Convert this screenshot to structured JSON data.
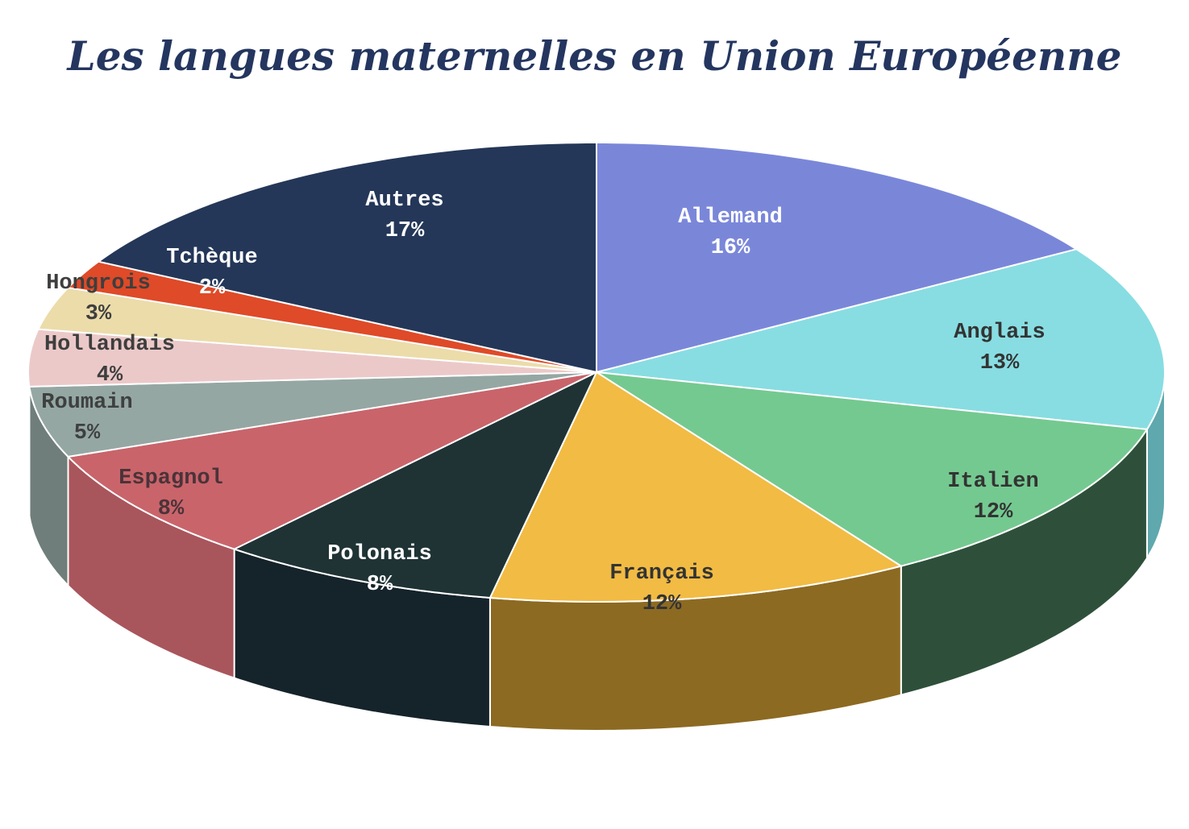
{
  "title": "Les langues maternelles en Union Européenne",
  "chart_data": {
    "type": "pie",
    "title": "Les langues maternelles en Union Européenne",
    "style": "3d",
    "categories": [
      "Allemand",
      "Anglais",
      "Italien",
      "Français",
      "Polonais",
      "Espagnol",
      "Roumain",
      "Hollandais",
      "Hongrois",
      "Tchèque",
      "Autres"
    ],
    "values": [
      16,
      13,
      12,
      12,
      8,
      8,
      5,
      4,
      3,
      2,
      17
    ],
    "unit": "%",
    "colors": [
      "#7a87d9",
      "#88dde2",
      "#74c990",
      "#f2bb43",
      "#1f3335",
      "#c9646b",
      "#95a7a3",
      "#ecc9c9",
      "#ebdcaa",
      "#df4a28",
      "#243758"
    ],
    "side_colors": [
      "#5a65a8",
      "#5fa8ad",
      "#2e503a",
      "#8c6a22",
      "#15232a",
      "#a9555c",
      "#6f7e7a",
      "#c6a5a5",
      "#c2b386",
      "#a8361d",
      "#18253d"
    ],
    "label_colors": [
      "#ffffff",
      "#333333",
      "#333333",
      "#333333",
      "#ffffff",
      "#4a3338",
      "#3e4040",
      "#3e3e3e",
      "#3e3e3e",
      "#ffffff",
      "#ffffff"
    ],
    "labels": [
      {
        "name": "Allemand",
        "pct": "16%"
      },
      {
        "name": "Anglais",
        "pct": "13%"
      },
      {
        "name": "Italien",
        "pct": "12%"
      },
      {
        "name": "Français",
        "pct": "12%"
      },
      {
        "name": "Polonais",
        "pct": "8%"
      },
      {
        "name": "Espagnol",
        "pct": "8%"
      },
      {
        "name": "Roumain",
        "pct": "5%"
      },
      {
        "name": "Hollandais",
        "pct": "4%"
      },
      {
        "name": "Hongrois",
        "pct": "3%"
      },
      {
        "name": "Tchèque",
        "pct": "2%"
      },
      {
        "name": "Autres",
        "pct": "17%"
      }
    ],
    "legend": "none (data labels on slices)"
  }
}
